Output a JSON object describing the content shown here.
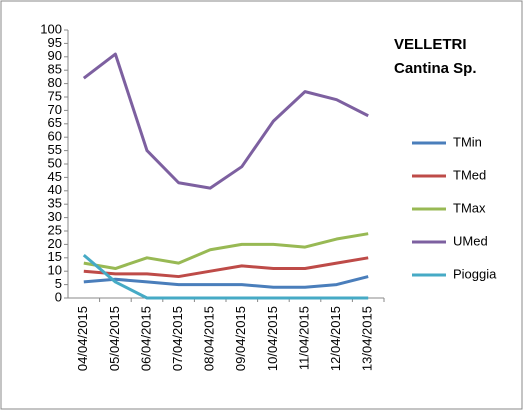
{
  "chart_data": {
    "type": "line",
    "title": "VELLETRI",
    "subtitle": "Cantina Sp.",
    "categories": [
      "04/04/2015",
      "05/04/2015",
      "06/04/2015",
      "07/04/2015",
      "08/04/2015",
      "09/04/2015",
      "10/04/2015",
      "11/04/2015",
      "12/04/2015",
      "13/04/2015"
    ],
    "series": [
      {
        "name": "TMin",
        "color": "#4a7ebb",
        "values": [
          6,
          7,
          6,
          5,
          5,
          5,
          4,
          4,
          5,
          8
        ]
      },
      {
        "name": "TMed",
        "color": "#be4b48",
        "values": [
          10,
          9,
          9,
          8,
          10,
          12,
          11,
          11,
          13,
          15
        ]
      },
      {
        "name": "TMax",
        "color": "#98b954",
        "values": [
          13,
          11,
          15,
          13,
          18,
          20,
          20,
          19,
          22,
          24
        ]
      },
      {
        "name": "UMed",
        "color": "#7d60a0",
        "values": [
          82,
          91,
          55,
          43,
          41,
          49,
          66,
          77,
          74,
          68
        ]
      },
      {
        "name": "Pioggia",
        "color": "#46aac5",
        "values": [
          16,
          6,
          0,
          0,
          0,
          0,
          0,
          0,
          0,
          0
        ]
      }
    ],
    "ylim": [
      0,
      100
    ],
    "yticks": [
      0,
      5,
      10,
      15,
      20,
      25,
      30,
      35,
      40,
      45,
      50,
      55,
      60,
      65,
      70,
      75,
      80,
      85,
      90,
      95,
      100
    ],
    "grid": false,
    "legend": "right"
  }
}
